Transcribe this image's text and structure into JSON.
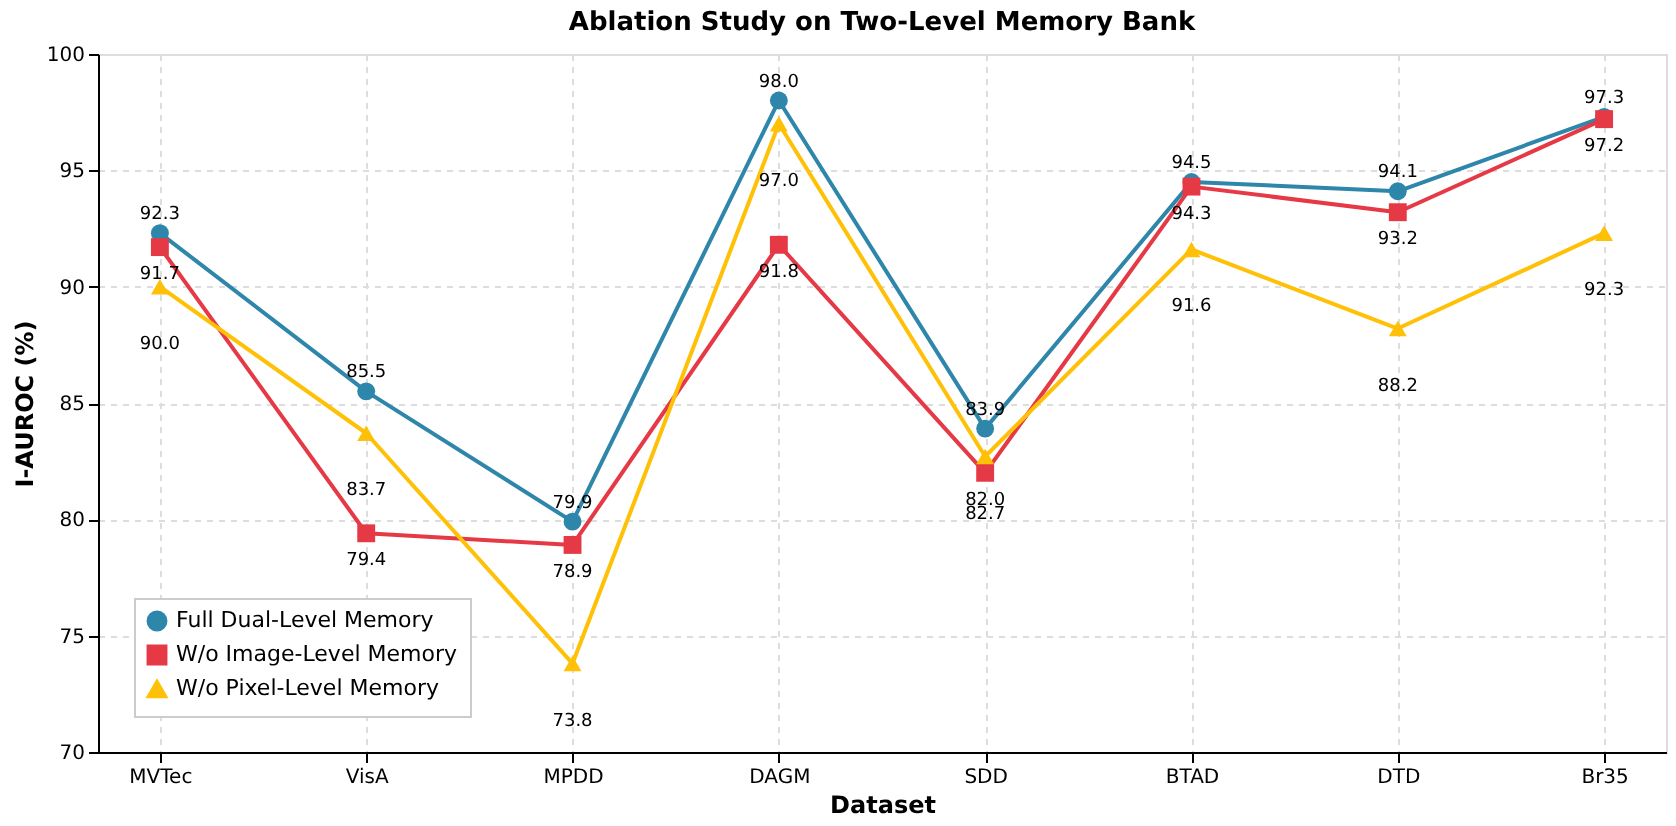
{
  "chart_data": {
    "type": "line",
    "title": "Ablation Study on Two-Level Memory Bank",
    "xlabel": "Dataset",
    "ylabel": "I-AUROC (%)",
    "categories": [
      "MVTec",
      "VisA",
      "MPDD",
      "DAGM",
      "SDD",
      "BTAD",
      "DTD",
      "Br35"
    ],
    "series": [
      {
        "name": "Full Dual-Level Memory",
        "color": "#2e86ab",
        "marker": "circle",
        "values": [
          92.3,
          85.5,
          79.9,
          98.0,
          83.9,
          94.5,
          94.1,
          97.3
        ],
        "value_labels": [
          "92.3",
          "85.5",
          "79.9",
          "98.0",
          "83.9",
          "94.5",
          "94.1",
          "97.3"
        ]
      },
      {
        "name": "W/o Image-Level Memory",
        "color": "#e63946",
        "marker": "square",
        "values": [
          91.7,
          79.4,
          78.9,
          91.8,
          82.0,
          94.3,
          93.2,
          97.2
        ],
        "value_labels": [
          "91.7",
          "79.4",
          "78.9",
          "91.8",
          "82.0",
          "94.3",
          "93.2",
          "97.2"
        ]
      },
      {
        "name": "W/o Pixel-Level Memory",
        "color": "#ffc107",
        "marker": "triangle",
        "values": [
          90.0,
          83.7,
          73.8,
          97.0,
          82.7,
          91.6,
          88.2,
          92.3
        ],
        "value_labels": [
          "90.0",
          "83.7",
          "73.8",
          "97.0",
          "82.7",
          "91.6",
          "88.2",
          "92.3"
        ]
      }
    ],
    "ylim": [
      70,
      100
    ],
    "yticks": [
      70,
      75,
      80,
      85,
      90,
      95,
      100
    ],
    "grid": true,
    "legend": "bottom left",
    "line_style": "solid"
  }
}
